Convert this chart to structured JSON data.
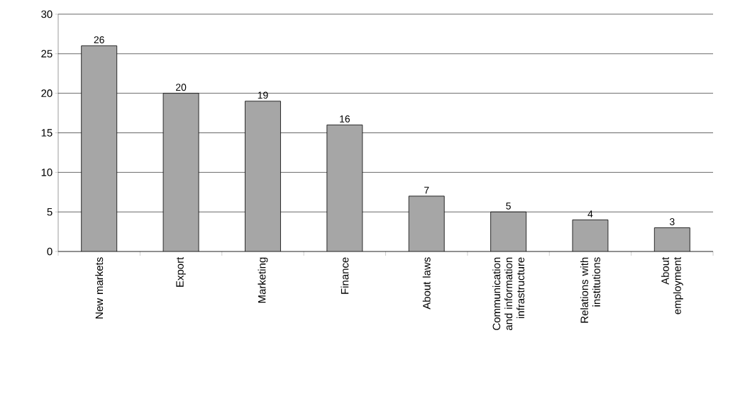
{
  "chart_data": {
    "type": "bar",
    "categories": [
      "New markets",
      "Export",
      "Marketing",
      "Finance",
      "About laws",
      "Communication and information infrastructure",
      "Relations with institutions",
      "About employment"
    ],
    "values": [
      26,
      20,
      19,
      16,
      7,
      5,
      4,
      3
    ],
    "color": "#a6a6a6",
    "ylim": [
      0,
      30
    ],
    "yticks": [
      0,
      5,
      10,
      15,
      20,
      25,
      30
    ],
    "grid": "y",
    "data_labels": true
  }
}
